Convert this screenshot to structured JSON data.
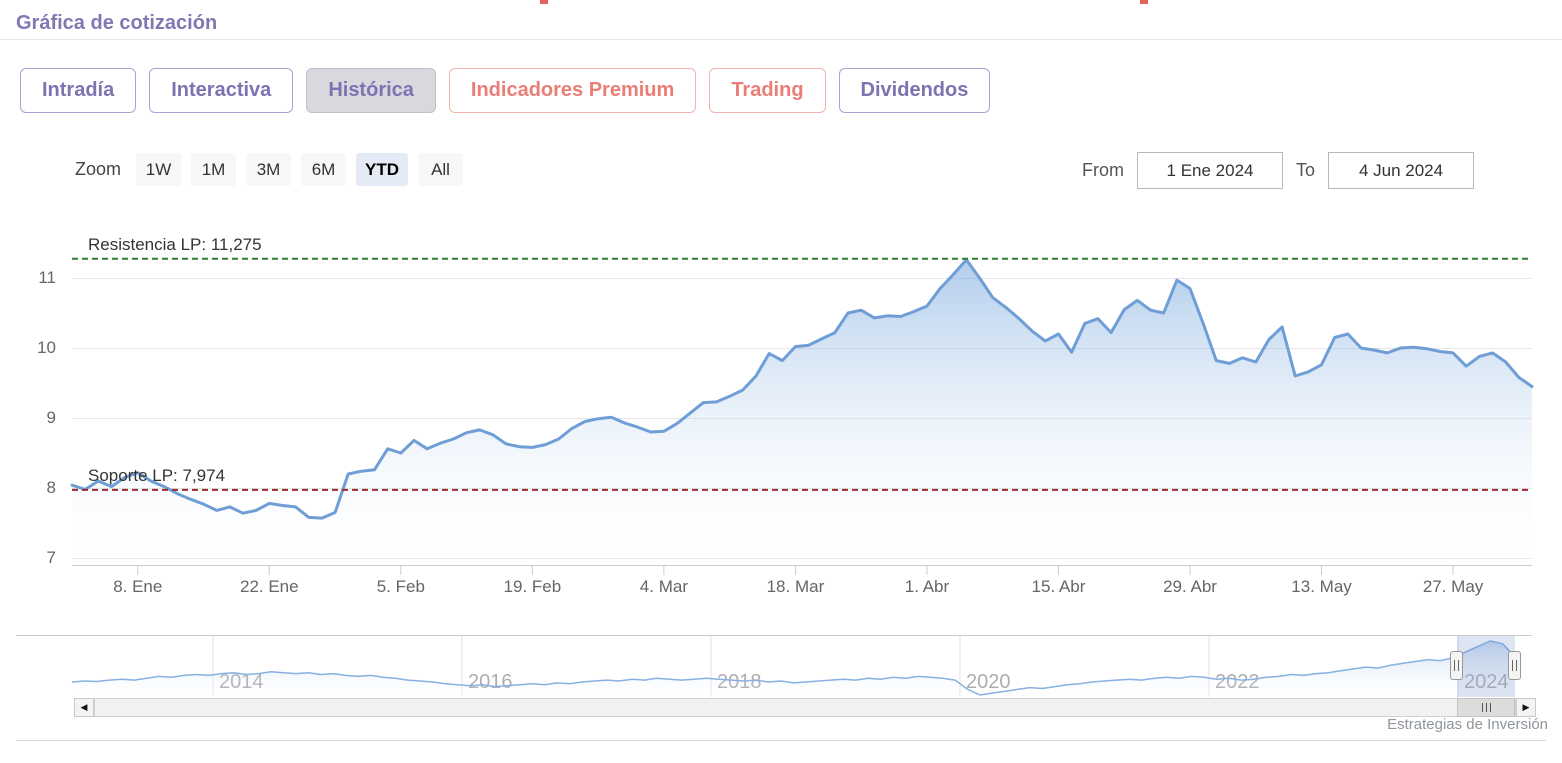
{
  "page": {
    "title": "Gráfica de cotización",
    "watermark": "Estrategias de Inversión"
  },
  "tabs": [
    {
      "label": "Intradía",
      "style": "purple",
      "active": false
    },
    {
      "label": "Interactiva",
      "style": "purple",
      "active": false
    },
    {
      "label": "Histórica",
      "style": "purple",
      "active": true
    },
    {
      "label": "Indicadores Premium",
      "style": "red",
      "active": false
    },
    {
      "label": "Trading",
      "style": "red",
      "active": false
    },
    {
      "label": "Dividendos",
      "style": "purple",
      "active": false
    }
  ],
  "toolbar": {
    "zoom_label": "Zoom",
    "ranges": [
      {
        "label": "1W",
        "active": false
      },
      {
        "label": "1M",
        "active": false
      },
      {
        "label": "3M",
        "active": false
      },
      {
        "label": "6M",
        "active": false
      },
      {
        "label": "YTD",
        "active": true
      },
      {
        "label": "All",
        "active": false
      }
    ],
    "from_label": "From",
    "from_value": "1 Ene 2024",
    "to_label": "To",
    "to_value": "4 Jun 2024"
  },
  "icons": {
    "scroll_left": "◀",
    "scroll_right": "▶"
  },
  "colors": {
    "title": "#7f78b2",
    "tab_purple": "#7b74b0",
    "tab_red": "#ea7e77",
    "tab_active_bg": "#d9d8de",
    "zoom_active_bg": "#e5ebf6",
    "gridline": "#e6e6e6",
    "axis_label": "#666666",
    "year_label": "#adadad",
    "watermark": "#8f959b",
    "resistance_green": "#2e7d32",
    "support_red": "#a1282e",
    "price_line_blue": "#6f9ed6"
  },
  "chart_data": {
    "type": "area",
    "title": "Gráfica de cotización",
    "xlabel": "",
    "ylabel": "",
    "x_start": "1 Ene 2024",
    "x_end": "4 Jun 2024",
    "ylim": [
      6.9,
      11.97
    ],
    "y_ticks": [
      7,
      8,
      9,
      10,
      11
    ],
    "grid": "horizontal",
    "legend": "none",
    "x_tick_labels": [
      "8. Ene",
      "22. Ene",
      "5. Feb",
      "19. Feb",
      "4. Mar",
      "18. Mar",
      "1. Abr",
      "15. Abr",
      "29. Abr",
      "13. May",
      "27. May"
    ],
    "x_tick_indices": [
      5,
      15,
      25,
      35,
      45,
      55,
      65,
      75,
      85,
      95,
      105
    ],
    "values": [
      8.04,
      7.98,
      8.1,
      8.02,
      8.15,
      8.22,
      8.1,
      8.02,
      7.92,
      7.84,
      7.77,
      7.68,
      7.73,
      7.64,
      7.68,
      7.78,
      7.75,
      7.73,
      7.58,
      7.57,
      7.65,
      8.2,
      8.24,
      8.26,
      8.56,
      8.5,
      8.68,
      8.56,
      8.64,
      8.7,
      8.79,
      8.83,
      8.76,
      8.63,
      8.59,
      8.58,
      8.62,
      8.7,
      8.85,
      8.95,
      8.99,
      9.01,
      8.93,
      8.87,
      8.8,
      8.81,
      8.92,
      9.07,
      9.22,
      9.23,
      9.31,
      9.4,
      9.6,
      9.92,
      9.82,
      10.02,
      10.04,
      10.13,
      10.22,
      10.5,
      10.54,
      10.43,
      10.46,
      10.45,
      10.52,
      10.6,
      10.85,
      11.05,
      11.26,
      11.0,
      10.72,
      10.58,
      10.42,
      10.24,
      10.1,
      10.2,
      9.94,
      10.35,
      10.42,
      10.22,
      10.55,
      10.68,
      10.54,
      10.5,
      10.97,
      10.85,
      10.35,
      9.82,
      9.78,
      9.86,
      9.8,
      10.12,
      10.3,
      9.6,
      9.66,
      9.76,
      10.15,
      10.2,
      10.0,
      9.97,
      9.93,
      10.0,
      10.01,
      9.99,
      9.95,
      9.93,
      9.74,
      9.88,
      9.93,
      9.8,
      9.58,
      9.45
    ],
    "annotations": [
      {
        "label": "Resistencia LP: 11,275",
        "value": 11.275,
        "color": "#2e7d32"
      },
      {
        "label": "Soporte LP: 7,974",
        "value": 7.974,
        "color": "#a1282e"
      }
    ],
    "line_color": "#6f9ed6",
    "area_top_color": "rgba(112,163,219,0.55)",
    "area_bottom_color": "rgba(255,255,255,0.05)"
  },
  "navigator_chart": {
    "type": "area",
    "x_start": "2013",
    "x_end": "Jun 2024",
    "year_labels": [
      "2014",
      "2016",
      "2018",
      "2020",
      "2022",
      "2024"
    ],
    "selected_from": "1 Ene 2024",
    "selected_to": "4 Jun 2024",
    "values": [
      6.8,
      6.9,
      6.85,
      7.0,
      7.1,
      7.0,
      7.2,
      7.4,
      7.3,
      7.5,
      7.6,
      7.5,
      7.7,
      7.8,
      7.6,
      7.7,
      7.9,
      7.8,
      7.7,
      7.8,
      7.6,
      7.7,
      7.5,
      7.4,
      7.5,
      7.3,
      7.2,
      7.0,
      6.9,
      6.8,
      6.6,
      6.5,
      6.4,
      6.5,
      6.3,
      6.4,
      6.5,
      6.6,
      6.5,
      6.7,
      6.6,
      6.8,
      6.9,
      7.0,
      6.9,
      7.1,
      7.0,
      7.2,
      7.1,
      7.0,
      7.1,
      7.2,
      7.1,
      7.0,
      6.9,
      7.0,
      6.8,
      6.9,
      6.7,
      6.8,
      6.9,
      7.0,
      7.1,
      7.0,
      7.2,
      7.1,
      7.3,
      7.2,
      7.4,
      7.3,
      7.2,
      7.0,
      6.0,
      5.4,
      5.6,
      5.8,
      6.0,
      6.2,
      6.1,
      6.3,
      6.5,
      6.6,
      6.8,
      6.9,
      7.0,
      7.1,
      7.0,
      7.2,
      7.3,
      7.2,
      7.4,
      7.3,
      7.1,
      7.2,
      7.0,
      7.1,
      7.3,
      7.4,
      7.6,
      7.5,
      7.7,
      7.8,
      8.0,
      8.2,
      8.4,
      8.3,
      8.6,
      8.8,
      9.0,
      9.2,
      9.1,
      9.4,
      10.0,
      10.6,
      11.2,
      10.9,
      9.5
    ],
    "line_color": "#87b1e0",
    "mask_color": "rgba(102,133,194,0.22)"
  }
}
